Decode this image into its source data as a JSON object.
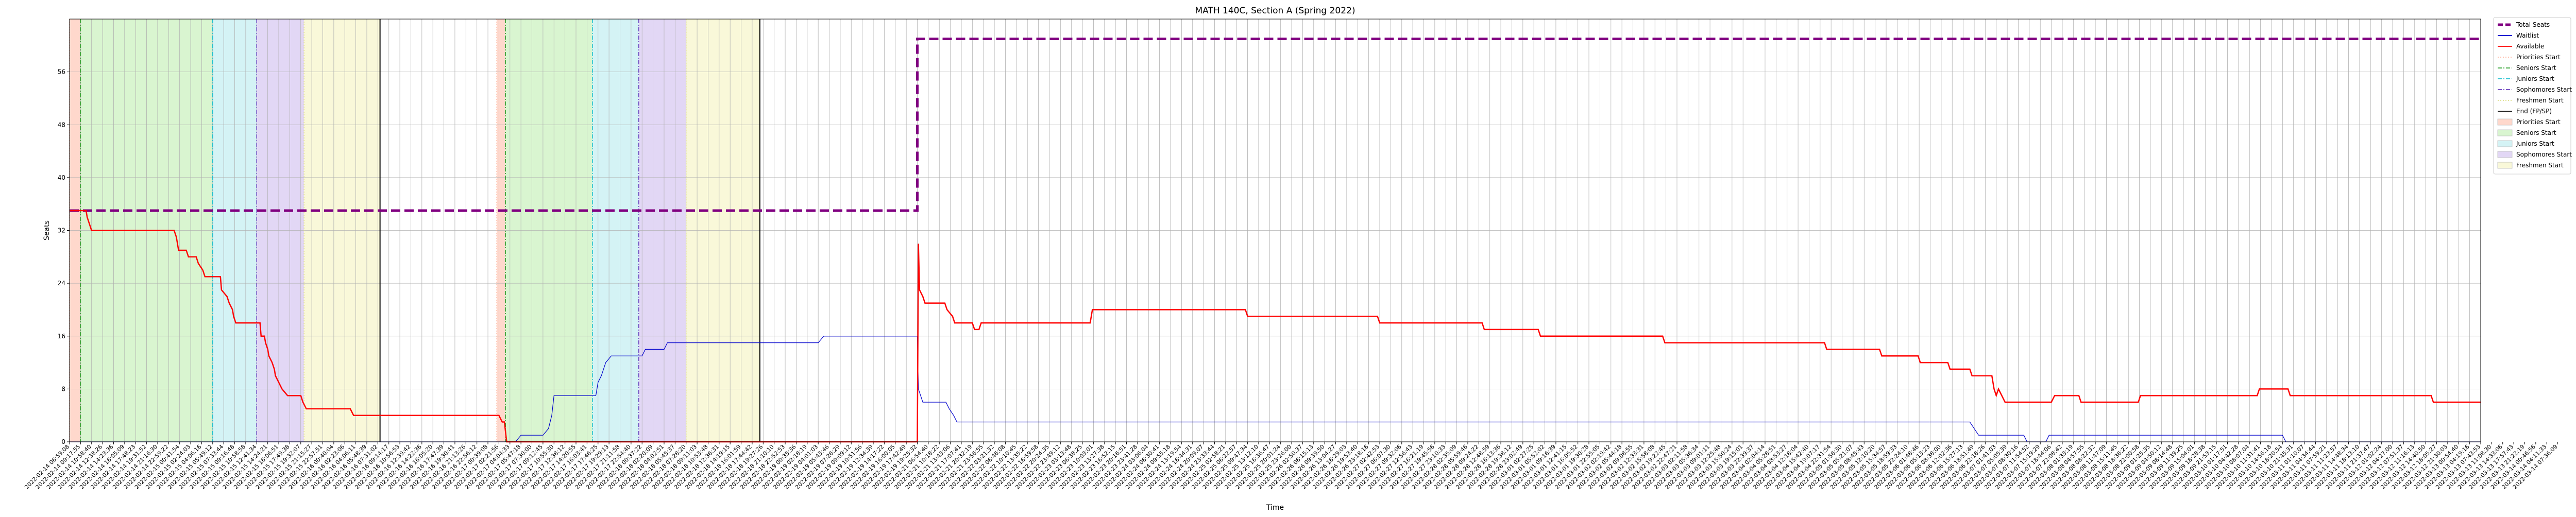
{
  "chart_data": {
    "type": "line",
    "title": "MATH 140C, Section A (Spring 2022)",
    "xlabel": "Time",
    "ylabel": "Seats",
    "ylim": [
      0,
      64
    ],
    "yticks": [
      0,
      8,
      16,
      24,
      32,
      40,
      48,
      56
    ],
    "grid": true,
    "legend_position": "outside-top-right",
    "legend": [
      {
        "label": "Total Seats",
        "kind": "line",
        "color": "#800080",
        "dash": "dashed",
        "width": "thick"
      },
      {
        "label": "Waitlist",
        "kind": "line",
        "color": "#0000cc",
        "dash": "solid",
        "width": "thin"
      },
      {
        "label": "Available",
        "kind": "line",
        "color": "#ff0000",
        "dash": "solid",
        "width": "thin"
      },
      {
        "label": "Priorities Start",
        "kind": "line",
        "color": "#ffb6a0",
        "dash": "dotted",
        "width": "thin"
      },
      {
        "label": "Seniors Start",
        "kind": "line",
        "color": "#2ca02c",
        "dash": "dashdot",
        "width": "thin"
      },
      {
        "label": "Juniors Start",
        "kind": "line",
        "color": "#17becf",
        "dash": "dashdot",
        "width": "thin"
      },
      {
        "label": "Sophomores Start",
        "kind": "line",
        "color": "#6a3fbf",
        "dash": "dashdot",
        "width": "thin"
      },
      {
        "label": "Freshmen Start",
        "kind": "line",
        "color": "#dddd88",
        "dash": "dotted",
        "width": "thin"
      },
      {
        "label": "End (FP/SP)",
        "kind": "line",
        "color": "#000000",
        "dash": "solid",
        "width": "thin"
      },
      {
        "label": "Priorities Start",
        "kind": "patch",
        "color": "#ffd8cc"
      },
      {
        "label": "Seniors Start",
        "kind": "patch",
        "color": "#d9f5d0"
      },
      {
        "label": "Juniors Start",
        "kind": "patch",
        "color": "#d4f3f5"
      },
      {
        "label": "Sophomores Start",
        "kind": "patch",
        "color": "#e2d7f5"
      },
      {
        "label": "Freshmen Start",
        "kind": "patch",
        "color": "#f9f8d9"
      }
    ],
    "x_index_range": [
      0,
      219
    ],
    "periods": [
      {
        "name": "FP",
        "priorities": [
          0,
          1
        ],
        "seniors": [
          1,
          13
        ],
        "juniors": [
          13,
          17
        ],
        "sophomores": [
          17,
          21.3
        ],
        "freshmen": [
          21.3,
          28.2
        ],
        "end": 28.2
      },
      {
        "name": "SP",
        "priorities": [
          38.8,
          39.6
        ],
        "seniors": [
          39.6,
          47.5
        ],
        "juniors": [
          47.5,
          51.7
        ],
        "sophomores": [
          51.7,
          56
        ],
        "freshmen": [
          56,
          62.7
        ],
        "end": 62.7
      }
    ],
    "series": [
      {
        "name": "Total Seats",
        "color": "#800080",
        "points": [
          [
            0,
            35
          ],
          [
            77,
            35
          ],
          [
            77,
            61
          ],
          [
            219,
            61
          ]
        ]
      },
      {
        "name": "Waitlist",
        "color": "#0000cc",
        "points": [
          [
            0,
            0
          ],
          [
            40.5,
            0
          ],
          [
            41,
            1
          ],
          [
            43,
            1
          ],
          [
            43.5,
            2
          ],
          [
            43.8,
            4
          ],
          [
            44,
            7
          ],
          [
            47.8,
            7
          ],
          [
            48,
            9
          ],
          [
            48.3,
            10
          ],
          [
            48.7,
            12
          ],
          [
            49.2,
            13
          ],
          [
            52,
            13
          ],
          [
            52.3,
            14
          ],
          [
            54,
            14
          ],
          [
            54.3,
            15
          ],
          [
            68,
            15
          ],
          [
            68.5,
            16
          ],
          [
            77,
            16
          ],
          [
            77.1,
            8
          ],
          [
            77.5,
            6
          ],
          [
            79.6,
            6
          ],
          [
            79.9,
            5
          ],
          [
            80.3,
            4
          ],
          [
            80.6,
            3
          ],
          [
            172.6,
            3
          ],
          [
            173,
            2
          ],
          [
            173.4,
            1
          ],
          [
            177.5,
            1
          ],
          [
            177.8,
            0
          ],
          [
            179.5,
            0
          ],
          [
            179.8,
            1
          ],
          [
            201,
            1
          ],
          [
            201.3,
            0
          ],
          [
            219,
            0
          ]
        ]
      },
      {
        "name": "Available",
        "color": "#ff0000",
        "points": [
          [
            0,
            35
          ],
          [
            1.5,
            35
          ],
          [
            1.6,
            34
          ],
          [
            1.8,
            33
          ],
          [
            2,
            32
          ],
          [
            9.5,
            32
          ],
          [
            9.7,
            31
          ],
          [
            9.9,
            29
          ],
          [
            10.6,
            29
          ],
          [
            10.8,
            28
          ],
          [
            11.5,
            28
          ],
          [
            11.7,
            27
          ],
          [
            12.1,
            26
          ],
          [
            12.3,
            25
          ],
          [
            13.7,
            25
          ],
          [
            13.8,
            23
          ],
          [
            14.3,
            22
          ],
          [
            14.5,
            21
          ],
          [
            14.8,
            20
          ],
          [
            14.9,
            19
          ],
          [
            15.1,
            18
          ],
          [
            17.3,
            18
          ],
          [
            17.4,
            16
          ],
          [
            17.7,
            16
          ],
          [
            17.8,
            15
          ],
          [
            18,
            14
          ],
          [
            18.1,
            13
          ],
          [
            18.4,
            12
          ],
          [
            18.6,
            11
          ],
          [
            18.7,
            10
          ],
          [
            19,
            9
          ],
          [
            19.3,
            8
          ],
          [
            19.8,
            7
          ],
          [
            21,
            7
          ],
          [
            21.2,
            6
          ],
          [
            21.5,
            5
          ],
          [
            25.5,
            5
          ],
          [
            25.8,
            4
          ],
          [
            39,
            4
          ],
          [
            39.3,
            3
          ],
          [
            39.5,
            3
          ],
          [
            39.7,
            0
          ],
          [
            77,
            0
          ],
          [
            77.1,
            30
          ],
          [
            77.2,
            23
          ],
          [
            77.5,
            22
          ],
          [
            77.7,
            21
          ],
          [
            79.5,
            21
          ],
          [
            79.7,
            20
          ],
          [
            80.2,
            19
          ],
          [
            80.4,
            18
          ],
          [
            82,
            18
          ],
          [
            82.2,
            17
          ],
          [
            82.6,
            17
          ],
          [
            82.8,
            18
          ],
          [
            92.7,
            18
          ],
          [
            92.9,
            20
          ],
          [
            106.8,
            20
          ],
          [
            107,
            19
          ],
          [
            118.8,
            19
          ],
          [
            119,
            18
          ],
          [
            128.3,
            18
          ],
          [
            128.5,
            17
          ],
          [
            133.4,
            17
          ],
          [
            133.6,
            16
          ],
          [
            144.7,
            16
          ],
          [
            144.9,
            15
          ],
          [
            159.4,
            15
          ],
          [
            159.6,
            14
          ],
          [
            164.4,
            14
          ],
          [
            164.6,
            13
          ],
          [
            167.9,
            13
          ],
          [
            168.1,
            12
          ],
          [
            170.6,
            12
          ],
          [
            170.8,
            11
          ],
          [
            172.6,
            11
          ],
          [
            172.8,
            10
          ],
          [
            174.6,
            10
          ],
          [
            174.8,
            8
          ],
          [
            175,
            7
          ],
          [
            175.2,
            8
          ],
          [
            175.5,
            7
          ],
          [
            175.8,
            6
          ],
          [
            180,
            6
          ],
          [
            180.3,
            7
          ],
          [
            182.5,
            7
          ],
          [
            182.7,
            6
          ],
          [
            187.9,
            6
          ],
          [
            188.1,
            7
          ],
          [
            198.7,
            7
          ],
          [
            198.9,
            8
          ],
          [
            201.5,
            8
          ],
          [
            201.7,
            7
          ],
          [
            214.5,
            7
          ],
          [
            214.7,
            6
          ],
          [
            219,
            6
          ]
        ]
      }
    ],
    "x_tick_labels": [
      "2022-02-14 06:59:08",
      "2022-02-14 09:17:55",
      "2022-02-14 10:58:40",
      "2022-02-14 12:38:26",
      "2022-02-14 14:23:36",
      "2022-02-14 16:05:09",
      "2022-02-14 17:48:23",
      "2022-02-14 19:31:52",
      "2022-02-14 21:16:30",
      "2022-02-14 22:59:22",
      "2022-02-15 00:41:54",
      "2022-02-15 02:24:03",
      "2022-02-15 04:06:16",
      "2022-02-15 05:49:12",
      "2022-02-15 07:33:44",
      "2022-02-15 09:16:48",
      "2022-02-15 10:58:58",
      "2022-02-15 12:41:34",
      "2022-02-15 14:24:21",
      "2022-02-15 16:06:51",
      "2022-02-15 17:49:38",
      "2022-02-15 19:32:07",
      "2022-02-15 21:15:27",
      "2022-02-15 22:57:51",
      "2022-02-16 00:40:04",
      "2022-02-16 02:23:06",
      "2022-02-16 04:06:11",
      "2022-02-16 05:48:39",
      "2022-02-16 07:31:02",
      "2022-02-16 09:14:17",
      "2022-02-16 10:56:53",
      "2022-02-16 12:39:42",
      "2022-02-16 14:22:36",
      "2022-02-16 16:05:20",
      "2022-02-16 17:47:39",
      "2022-02-16 19:30:41",
      "2022-02-16 21:13:26",
      "2022-02-16 22:56:12",
      "2022-02-17 00:39:08",
      "2022-02-17 02:21:56",
      "2022-02-17 04:04:33",
      "2022-02-17 05:47:18",
      "2022-02-17 07:30:00",
      "2022-02-17 09:12:45",
      "2022-02-17 10:55:30",
      "2022-02-17 12:38:12",
      "2022-02-17 14:20:55",
      "2022-02-17 16:03:41",
      "2022-02-17 17:46:25",
      "2022-02-17 19:29:13",
      "2022-02-17 21:11:58",
      "2022-02-17 22:54:40",
      "2022-02-18 00:37:22",
      "2022-02-18 02:20:09",
      "2022-02-18 04:02:51",
      "2022-02-18 05:45:37",
      "2022-02-18 07:28:20",
      "2022-02-18 09:11:03",
      "2022-02-18 10:53:48",
      "2022-02-18 12:36:31",
      "2022-02-18 14:19:15",
      "2022-02-18 16:01:59",
      "2022-02-18 17:44:42",
      "2022-02-18 19:27:26",
      "2022-02-18 21:10:10",
      "2022-02-18 22:52:53",
      "2022-02-19 00:35:36",
      "2022-02-19 02:18:19",
      "2022-02-19 04:01:03",
      "2022-02-19 05:43:46",
      "2022-02-19 07:26:29",
      "2022-02-19 09:09:12",
      "2022-02-19 10:51:56",
      "2022-02-19 12:34:39",
      "2022-02-19 14:17:22",
      "2022-02-19 16:00:05",
      "2022-02-19 17:42:49",
      "2022-02-19 19:25:32",
      "2022-02-21 06:54:40",
      "2022-02-21 10:18:22",
      "2022-02-21 13:43:06",
      "2022-02-21 17:07:41",
      "2022-02-21 20:32:19",
      "2022-02-21 23:56:55",
      "2022-02-22 03:21:32",
      "2022-02-22 06:46:08",
      "2022-02-22 10:10:45",
      "2022-02-22 13:35:22",
      "2022-02-22 16:59:58",
      "2022-02-22 20:24:35",
      "2022-02-22 23:49:12",
      "2022-02-23 03:13:48",
      "2022-02-23 06:38:25",
      "2022-02-23 10:03:01",
      "2022-02-23 13:27:38",
      "2022-02-23 16:52:15",
      "2022-02-23 20:16:51",
      "2022-02-23 23:41:28",
      "2022-02-24 03:06:04",
      "2022-02-24 06:30:41",
      "2022-02-24 09:55:18",
      "2022-02-24 13:19:54",
      "2022-02-24 16:44:31",
      "2022-02-24 20:09:07",
      "2022-02-24 23:33:44",
      "2022-02-25 02:58:21",
      "2022-02-25 06:22:57",
      "2022-02-25 09:47:34",
      "2022-02-25 13:12:10",
      "2022-02-25 16:36:47",
      "2022-02-25 20:01:24",
      "2022-02-25 23:26:00",
      "2022-02-26 02:50:37",
      "2022-02-26 06:15:13",
      "2022-02-26 09:39:50",
      "2022-02-26 13:04:27",
      "2022-02-26 16:29:03",
      "2022-02-26 19:53:40",
      "2022-02-26 23:18:16",
      "2022-02-27 02:42:53",
      "2022-02-27 06:07:30",
      "2022-02-27 09:32:06",
      "2022-02-27 12:56:43",
      "2022-02-27 16:21:19",
      "2022-02-27 19:45:56",
      "2022-02-27 23:10:33",
      "2022-02-28 02:35:09",
      "2022-02-28 05:59:46",
      "2022-02-28 09:24:22",
      "2022-02-28 12:48:59",
      "2022-02-28 16:13:36",
      "2022-02-28 19:38:12",
      "2022-02-28 23:02:49",
      "2022-03-01 02:27:25",
      "2022-03-01 05:52:02",
      "2022-03-01 09:16:39",
      "2022-03-01 12:41:15",
      "2022-03-01 16:05:52",
      "2022-03-01 19:30:28",
      "2022-03-01 22:55:05",
      "2022-03-02 02:19:42",
      "2022-03-02 05:44:18",
      "2022-03-02 09:08:55",
      "2022-03-02 12:33:31",
      "2022-03-02 15:58:08",
      "2022-03-02 19:22:45",
      "2022-03-02 22:47:21",
      "2022-03-03 02:11:58",
      "2022-03-03 05:36:34",
      "2022-03-03 09:01:11",
      "2022-03-03 12:25:48",
      "2022-03-03 15:50:24",
      "2022-03-03 19:15:01",
      "2022-03-03 22:39:37",
      "2022-03-04 02:04:14",
      "2022-03-04 05:28:51",
      "2022-03-04 08:53:27",
      "2022-03-04 12:18:04",
      "2022-03-04 15:42:40",
      "2022-03-04 19:07:17",
      "2022-03-04 22:31:54",
      "2022-03-05 01:56:30",
      "2022-03-05 05:21:07",
      "2022-03-05 08:45:43",
      "2022-03-05 12:10:20",
      "2022-03-05 15:34:57",
      "2022-03-05 18:59:33",
      "2022-03-05 22:24:10",
      "2022-03-06 01:48:46",
      "2022-03-06 05:13:23",
      "2022-03-06 08:38:00",
      "2022-03-06 12:02:36",
      "2022-03-06 15:27:13",
      "2022-03-06 18:51:49",
      "2022-03-06 22:16:26",
      "2022-03-07 01:41:03",
      "2022-03-07 05:05:39",
      "2022-03-07 08:30:16",
      "2022-03-07 11:54:52",
      "2022-03-07 15:19:29",
      "2022-03-07 18:44:06",
      "2022-03-07 22:08:42",
      "2022-03-08 01:33:19",
      "2022-03-08 04:57:55",
      "2022-03-08 08:22:32",
      "2022-03-08 11:47:09",
      "2022-03-08 15:11:45",
      "2022-03-08 18:36:22",
      "2022-03-08 22:00:58",
      "2022-03-09 01:25:35",
      "2022-03-09 04:50:12",
      "2022-03-09 08:14:48",
      "2022-03-09 11:39:25",
      "2022-03-09 15:04:01",
      "2022-03-09 18:28:38",
      "2022-03-09 21:53:15",
      "2022-03-10 01:17:51",
      "2022-03-10 04:42:28",
      "2022-03-10 08:07:04",
      "2022-03-10 11:31:41",
      "2022-03-10 14:56:18",
      "2022-03-10 18:20:54",
      "2022-03-10 21:45:31",
      "2022-03-11 01:10:07",
      "2022-03-11 04:34:44",
      "2022-03-11 07:59:21",
      "2022-03-11 11:23:57",
      "2022-03-11 14:48:34",
      "2022-03-11 18:13:10",
      "2022-03-11 21:37:47",
      "2022-03-12 01:02:24",
      "2022-03-12 04:27:00",
      "2022-03-12 07:51:37",
      "2022-03-12 11:16:13",
      "2022-03-12 14:40:50",
      "2022-03-12 18:05:27",
      "2022-03-12 21:30:03",
      "2022-03-13 00:54:40",
      "2022-03-13 04:19:16",
      "2022-03-13 07:43:53",
      "2022-03-13 11:08:30",
      "2022-03-13 14:33:06",
      "2022-03-13 17:57:43",
      "2022-03-13 21:22:19",
      "2022-03-14 00:46:56",
      "2022-03-14 04:11:33",
      "2022-03-14 07:36:09"
    ]
  }
}
